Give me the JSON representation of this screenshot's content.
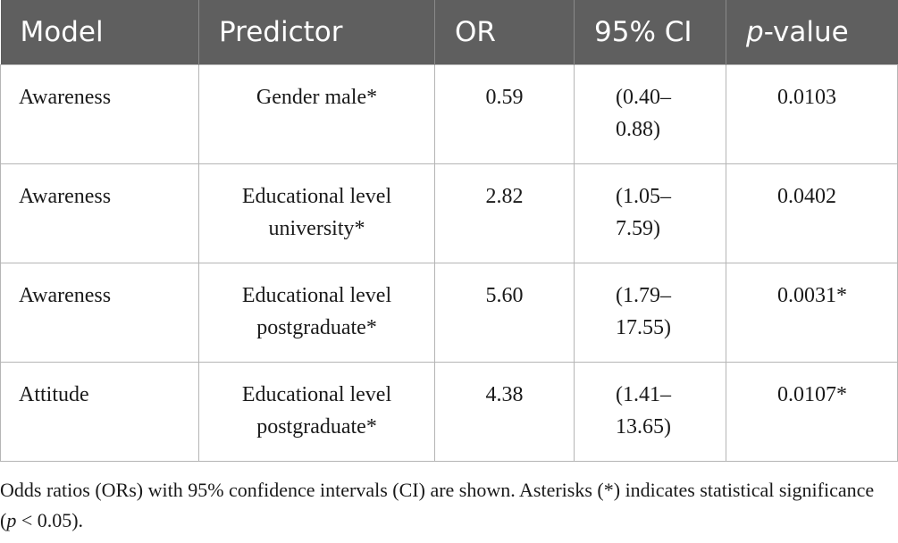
{
  "table": {
    "headers": {
      "model": "Model",
      "predictor": "Predictor",
      "or": "OR",
      "ci": "95% CI",
      "p_italic": "p",
      "p_rest": "-value"
    },
    "rows": [
      {
        "model": "Awareness",
        "predictor_line1": "Gender male*",
        "predictor_line2": "",
        "or": "0.59",
        "ci_line1": "(0.40–",
        "ci_line2": "0.88)",
        "p": "0.0103"
      },
      {
        "model": "Awareness",
        "predictor_line1": "Educational level",
        "predictor_line2": "university*",
        "or": "2.82",
        "ci_line1": "(1.05–",
        "ci_line2": "7.59)",
        "p": "0.0402"
      },
      {
        "model": "Awareness",
        "predictor_line1": "Educational level",
        "predictor_line2": "postgraduate*",
        "or": "5.60",
        "ci_line1": "(1.79–",
        "ci_line2": "17.55)",
        "p": "0.0031*"
      },
      {
        "model": "Attitude",
        "predictor_line1": "Educational level",
        "predictor_line2": "postgraduate*",
        "or": "4.38",
        "ci_line1": "(1.41–",
        "ci_line2": "13.65)",
        "p": "0.0107*"
      }
    ]
  },
  "footnote": {
    "part1": "Odds ratios (ORs) with 95% confidence intervals (CI) are shown. Asterisks (*) indicates statistical significance (",
    "p_italic": "p",
    "part2": " < 0.05)."
  }
}
